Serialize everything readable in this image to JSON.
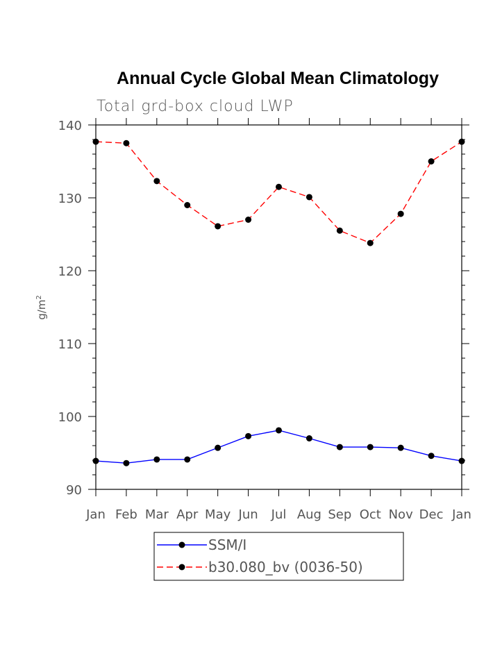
{
  "chart_data": {
    "type": "line",
    "title": "Annual Cycle Global Mean Climatology",
    "subtitle": "Total grd-box cloud LWP",
    "xlabel": "",
    "ylabel": "g/m",
    "ylabel_superscript": "2",
    "ylim": [
      90,
      140
    ],
    "yticks": [
      90,
      100,
      110,
      120,
      130,
      140
    ],
    "categories": [
      "Jan",
      "Feb",
      "Mar",
      "Apr",
      "May",
      "Jun",
      "Jul",
      "Aug",
      "Sep",
      "Oct",
      "Nov",
      "Dec",
      "Jan"
    ],
    "series": [
      {
        "name": "SSM/I",
        "color": "#0000ff",
        "dash": "solid",
        "marker": "filled-circle",
        "values": [
          93.9,
          93.6,
          94.1,
          94.1,
          95.7,
          97.3,
          98.1,
          97.0,
          95.8,
          95.8,
          95.7,
          94.6,
          93.9
        ]
      },
      {
        "name": "b30.080_bv (0036-50)",
        "color": "#ff0000",
        "dash": "dashed",
        "marker": "filled-circle",
        "values": [
          137.7,
          137.5,
          132.3,
          129.0,
          126.1,
          127.0,
          131.5,
          130.1,
          125.5,
          123.8,
          127.8,
          135.0,
          137.7
        ]
      }
    ],
    "grid": false,
    "legend_position": "bottom"
  }
}
